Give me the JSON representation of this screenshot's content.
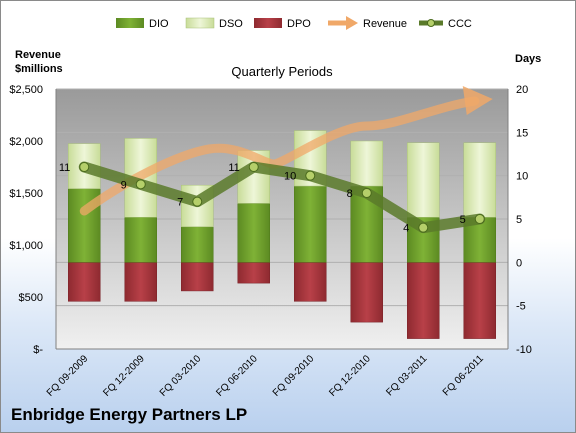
{
  "company": "Enbridge Energy Partners LP",
  "chart_data": {
    "type": "bar",
    "title": "Quarterly Periods",
    "categories": [
      "FQ 09-2009",
      "FQ 12-2009",
      "FQ 03-2010",
      "FQ 06-2010",
      "FQ 09-2010",
      "FQ 12-2010",
      "FQ 03-2011",
      "FQ 06-2011"
    ],
    "y_left": {
      "label_line1": "Revenue",
      "label_line2": "$millions",
      "range": [
        -10,
        20
      ],
      "ticks": [
        "$-",
        "$500",
        "$1,000",
        "$1,500",
        "$2,000",
        "$2,500"
      ]
    },
    "y_right": {
      "label": "Days",
      "range": [
        -10,
        20
      ],
      "ticks": [
        "-10",
        "-5",
        "0",
        "5",
        "10",
        "15",
        "20"
      ]
    },
    "legend": {
      "position": "top",
      "items": [
        "DIO",
        "DSO",
        "DPO",
        "Revenue",
        "CCC"
      ]
    },
    "series": [
      {
        "name": "DIO",
        "values": [
          8.5,
          5.2,
          4.1,
          6.8,
          8.8,
          8.8,
          5.2,
          5.2
        ],
        "color": "#6e9e2a"
      },
      {
        "name": "DSO",
        "values": [
          5.2,
          9.1,
          4.8,
          6.1,
          6.4,
          5.2,
          8.6,
          8.6
        ],
        "color": "#d8e8b0"
      },
      {
        "name": "DPO",
        "values": [
          -4.5,
          -4.5,
          -3.3,
          -2.4,
          -4.5,
          -6.9,
          -8.8,
          -8.8
        ],
        "color": "#a8343a"
      },
      {
        "name": "CCC",
        "values": [
          11,
          9,
          7,
          11,
          10,
          8,
          4,
          5
        ],
        "color": "#5a7a2a"
      }
    ],
    "revenue_trend": {
      "name": "Revenue",
      "color": "#f0a868",
      "shown_as": "arrow"
    },
    "ccc_labels": [
      "11",
      "9",
      "7",
      "11",
      "10",
      "8",
      "4",
      "5"
    ]
  }
}
